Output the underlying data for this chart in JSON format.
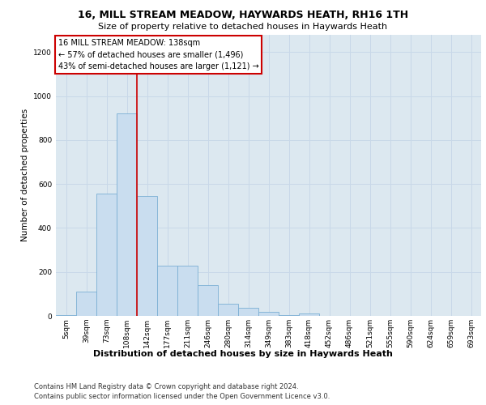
{
  "title": "16, MILL STREAM MEADOW, HAYWARDS HEATH, RH16 1TH",
  "subtitle": "Size of property relative to detached houses in Haywards Heath",
  "xlabel": "Distribution of detached houses by size in Haywards Heath",
  "ylabel": "Number of detached properties",
  "footer_line1": "Contains HM Land Registry data © Crown copyright and database right 2024.",
  "footer_line2": "Contains public sector information licensed under the Open Government Licence v3.0.",
  "categories": [
    "5sqm",
    "39sqm",
    "73sqm",
    "108sqm",
    "142sqm",
    "177sqm",
    "211sqm",
    "246sqm",
    "280sqm",
    "314sqm",
    "349sqm",
    "383sqm",
    "418sqm",
    "452sqm",
    "486sqm",
    "521sqm",
    "555sqm",
    "590sqm",
    "624sqm",
    "659sqm",
    "693sqm"
  ],
  "values": [
    5,
    110,
    555,
    920,
    545,
    230,
    230,
    140,
    55,
    35,
    20,
    5,
    10,
    0,
    0,
    0,
    0,
    0,
    0,
    0,
    0
  ],
  "bar_color": "#c9ddef",
  "bar_edge_color": "#7bafd4",
  "property_line_x": 3.5,
  "annotation_title": "16 MILL STREAM MEADOW: 138sqm",
  "annotation_line1": "← 57% of detached houses are smaller (1,496)",
  "annotation_line2": "43% of semi-detached houses are larger (1,121) →",
  "annotation_box_color": "#ffffff",
  "annotation_box_edge": "#cc0000",
  "line_color": "#cc0000",
  "ylim": [
    0,
    1280
  ],
  "yticks": [
    0,
    200,
    400,
    600,
    800,
    1000,
    1200
  ],
  "grid_color": "#c8d8e8",
  "background_color": "#dce8f0",
  "title_fontsize": 9,
  "subtitle_fontsize": 8,
  "ylabel_fontsize": 7.5,
  "xlabel_fontsize": 8,
  "tick_fontsize": 6.5,
  "annotation_fontsize": 7,
  "footer_fontsize": 6
}
